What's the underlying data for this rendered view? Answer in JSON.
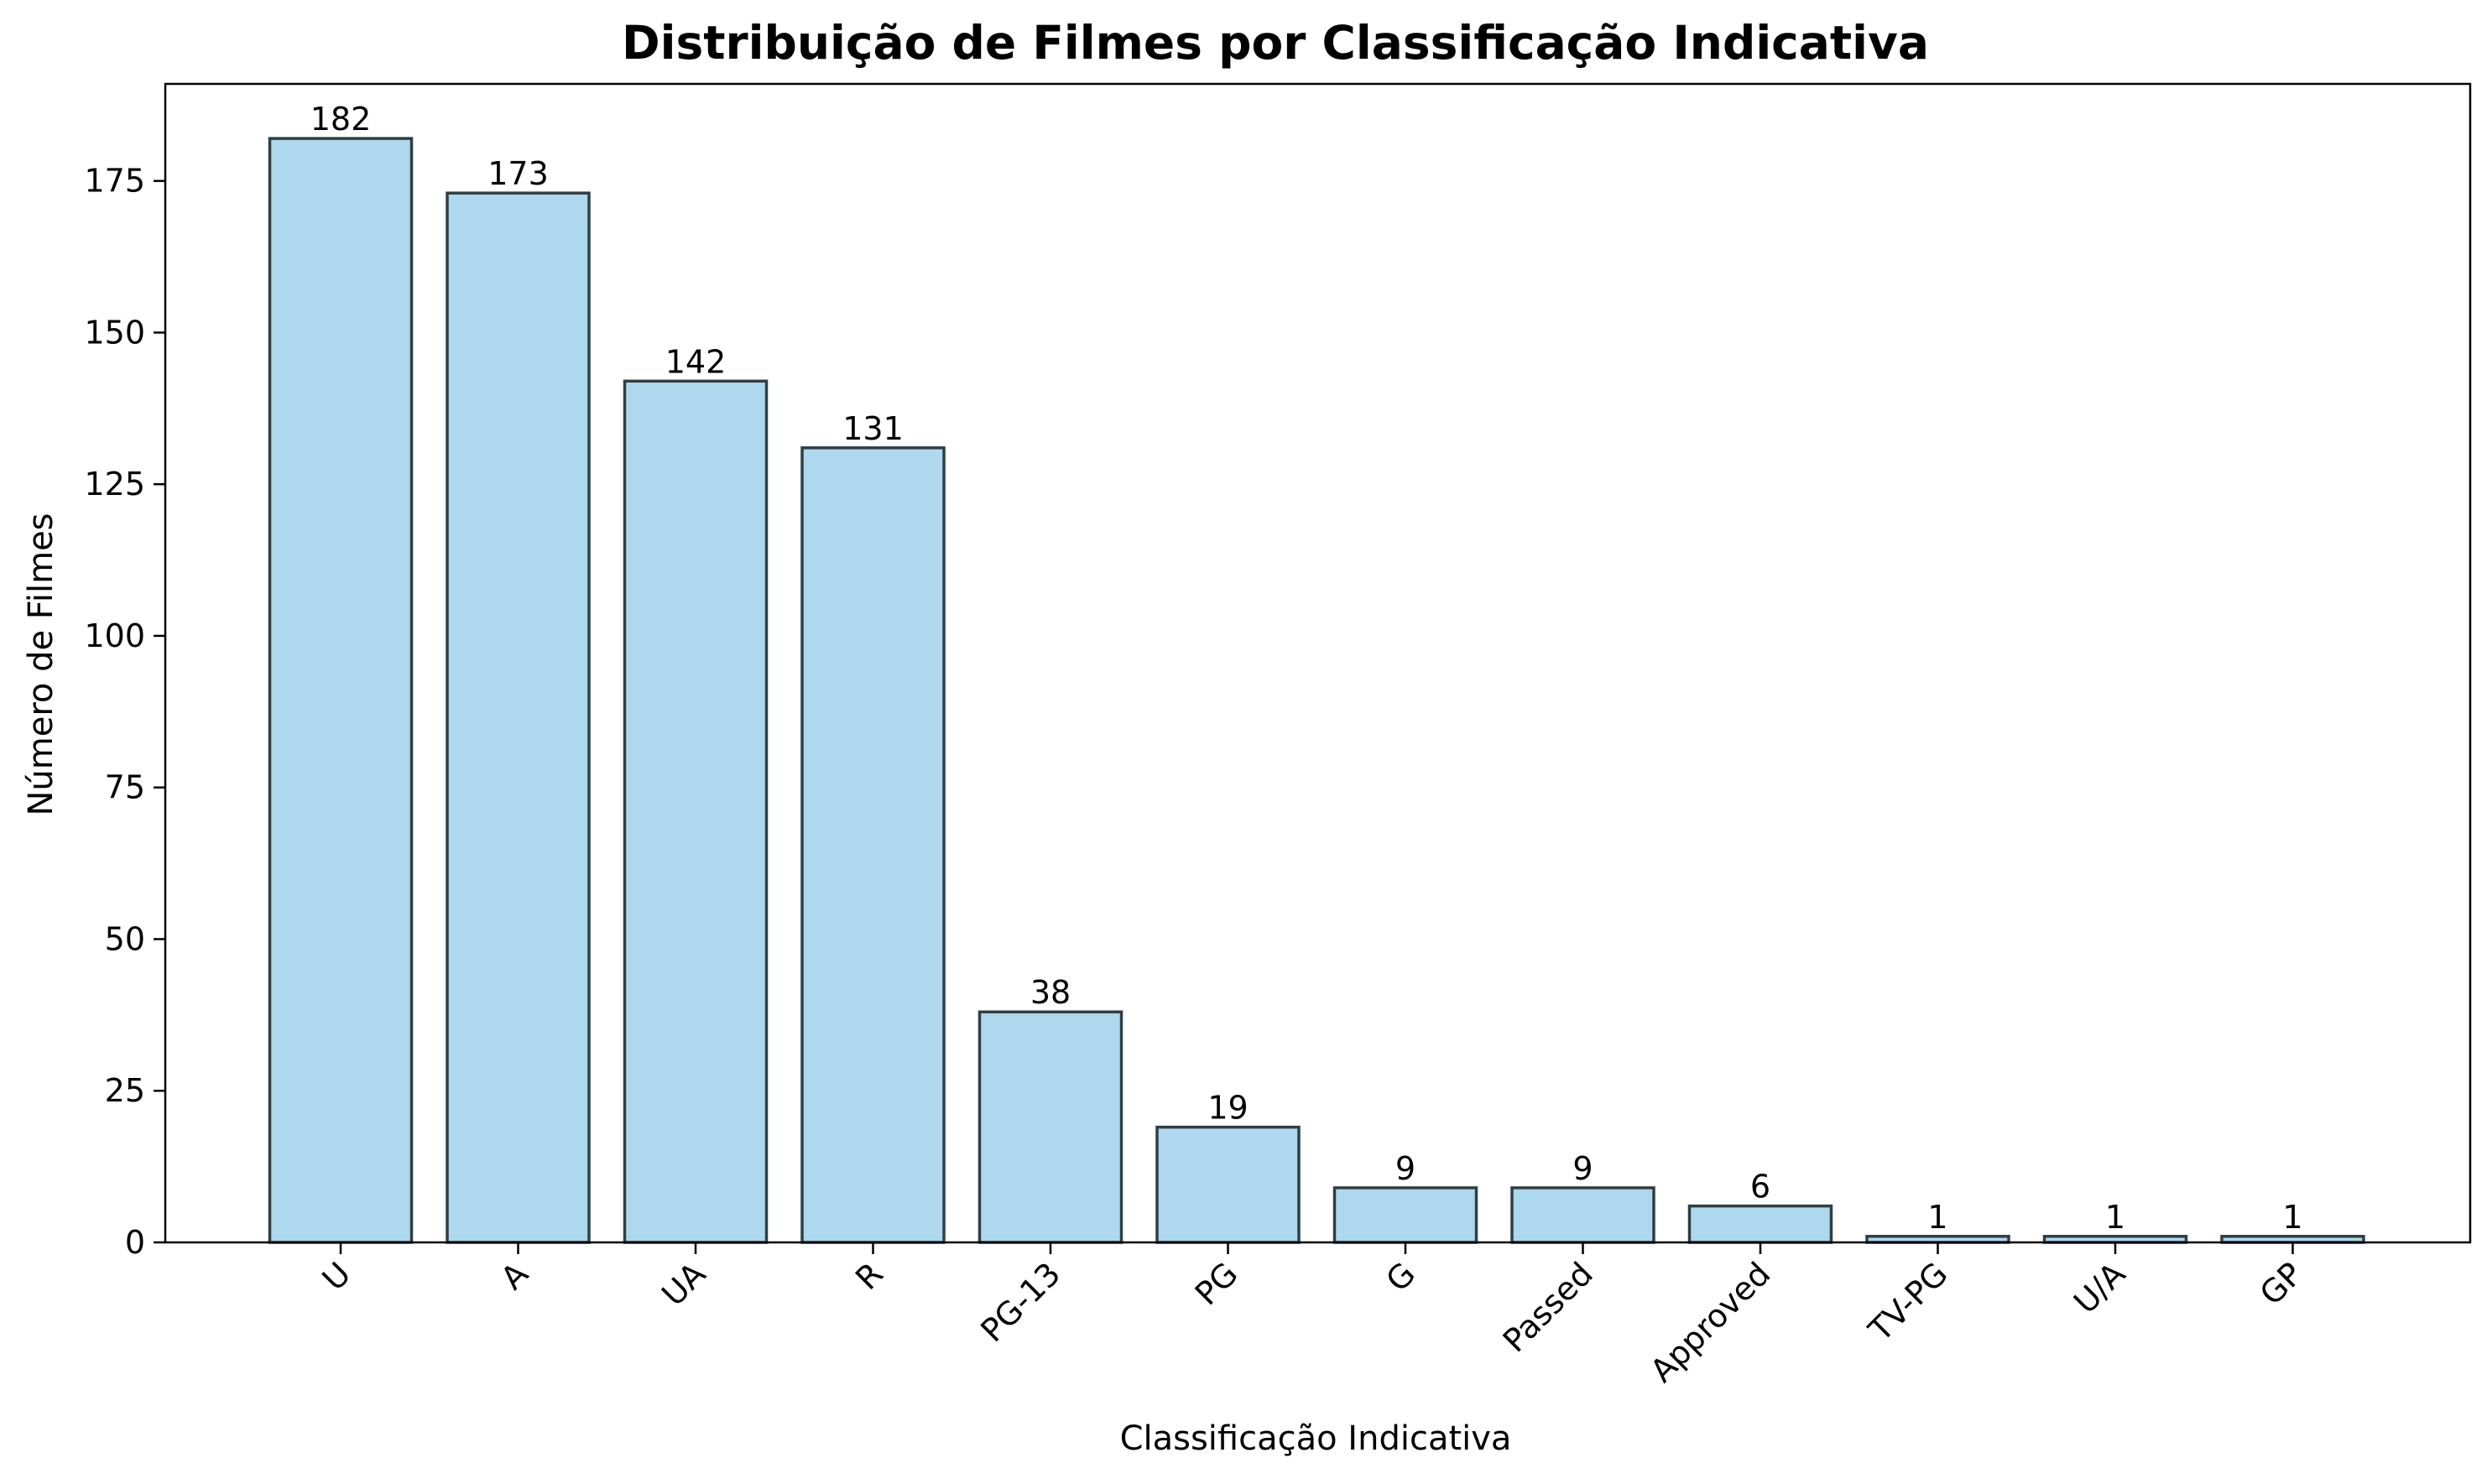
{
  "chart_data": {
    "type": "bar",
    "title": "Distribuição de Filmes por Classificação Indicativa",
    "xlabel": "Classificação Indicativa",
    "ylabel": "Número de Filmes",
    "categories": [
      "U",
      "A",
      "UA",
      "R",
      "PG-13",
      "PG",
      "G",
      "Passed",
      "Approved",
      "TV-PG",
      "U/A",
      "GP"
    ],
    "values": [
      182,
      173,
      142,
      131,
      38,
      19,
      9,
      9,
      6,
      1,
      1,
      1
    ],
    "ylim": [
      0,
      191
    ],
    "yticks": [
      0,
      25,
      50,
      75,
      100,
      125,
      150,
      175
    ],
    "grid": false,
    "bar_color": "#add8ed",
    "bar_edge_color": "#2f3f46",
    "data_labels": true
  }
}
